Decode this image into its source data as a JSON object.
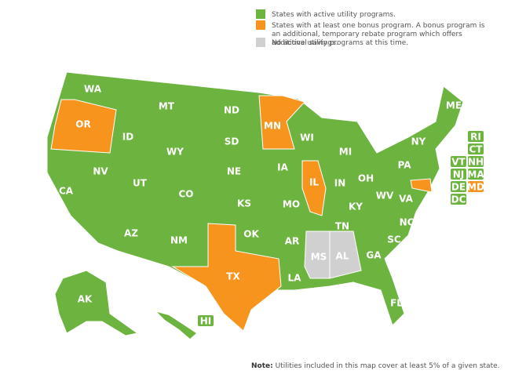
{
  "legend": [
    {
      "color": "#6db33f",
      "label": "States with active utility programs."
    },
    {
      "color": "#f7941d",
      "label": "States with at least one bonus program. A bonus program is an additional, temporary rebate program which offers additional savings."
    },
    {
      "color": "#d0d0d0",
      "label": "No active utility programs at this time."
    }
  ],
  "states": [
    {
      "label": "WA",
      "color": "#6db33f"
    },
    {
      "label": "OR",
      "color": "#f7941d"
    },
    {
      "label": "CA",
      "color": "#6db33f"
    },
    {
      "label": "NV",
      "color": "#6db33f"
    },
    {
      "label": "ID",
      "color": "#6db33f"
    },
    {
      "label": "MT",
      "color": "#6db33f"
    },
    {
      "label": "WY",
      "color": "#6db33f"
    },
    {
      "label": "UT",
      "color": "#6db33f"
    },
    {
      "label": "CO",
      "color": "#6db33f"
    },
    {
      "label": "AZ",
      "color": "#6db33f"
    },
    {
      "label": "NM",
      "color": "#6db33f"
    },
    {
      "label": "ND",
      "color": "#6db33f"
    },
    {
      "label": "SD",
      "color": "#6db33f"
    },
    {
      "label": "NE",
      "color": "#6db33f"
    },
    {
      "label": "KS",
      "color": "#6db33f"
    },
    {
      "label": "OK",
      "color": "#6db33f"
    },
    {
      "label": "TX",
      "color": "#f7941d"
    },
    {
      "label": "MN",
      "color": "#f7941d"
    },
    {
      "label": "IA",
      "color": "#6db33f"
    },
    {
      "label": "MO",
      "color": "#6db33f"
    },
    {
      "label": "AR",
      "color": "#6db33f"
    },
    {
      "label": "LA",
      "color": "#6db33f"
    },
    {
      "label": "WI",
      "color": "#6db33f"
    },
    {
      "label": "IL",
      "color": "#f7941d"
    },
    {
      "label": "MS",
      "color": "#d0d0d0"
    },
    {
      "label": "AL",
      "color": "#d0d0d0"
    },
    {
      "label": "MI",
      "color": "#6db33f"
    },
    {
      "label": "IN",
      "color": "#6db33f"
    },
    {
      "label": "OH",
      "color": "#6db33f"
    },
    {
      "label": "KY",
      "color": "#6db33f"
    },
    {
      "label": "TN",
      "color": "#6db33f"
    },
    {
      "label": "GA",
      "color": "#6db33f"
    },
    {
      "label": "FL",
      "color": "#6db33f"
    },
    {
      "label": "SC",
      "color": "#6db33f"
    },
    {
      "label": "NC",
      "color": "#6db33f"
    },
    {
      "label": "VA",
      "color": "#6db33f"
    },
    {
      "label": "WV",
      "color": "#6db33f"
    },
    {
      "label": "PA",
      "color": "#6db33f"
    },
    {
      "label": "NY",
      "color": "#6db33f"
    },
    {
      "label": "ME",
      "color": "#6db33f"
    },
    {
      "label": "AK",
      "color": "#6db33f"
    },
    {
      "label": "HI",
      "color": "#6db33f"
    },
    {
      "label": "RI",
      "color": "#6db33f"
    },
    {
      "label": "CT",
      "color": "#6db33f"
    },
    {
      "label": "VT",
      "color": "#6db33f"
    },
    {
      "label": "NH",
      "color": "#6db33f"
    },
    {
      "label": "NJ",
      "color": "#6db33f"
    },
    {
      "label": "MA",
      "color": "#6db33f"
    },
    {
      "label": "DE",
      "color": "#6db33f"
    },
    {
      "label": "MD",
      "color": "#f7941d"
    },
    {
      "label": "DC",
      "color": "#6db33f"
    }
  ],
  "note": {
    "label": "Note:",
    "text": "Utilities included in this map cover at least 5% of a given state."
  }
}
